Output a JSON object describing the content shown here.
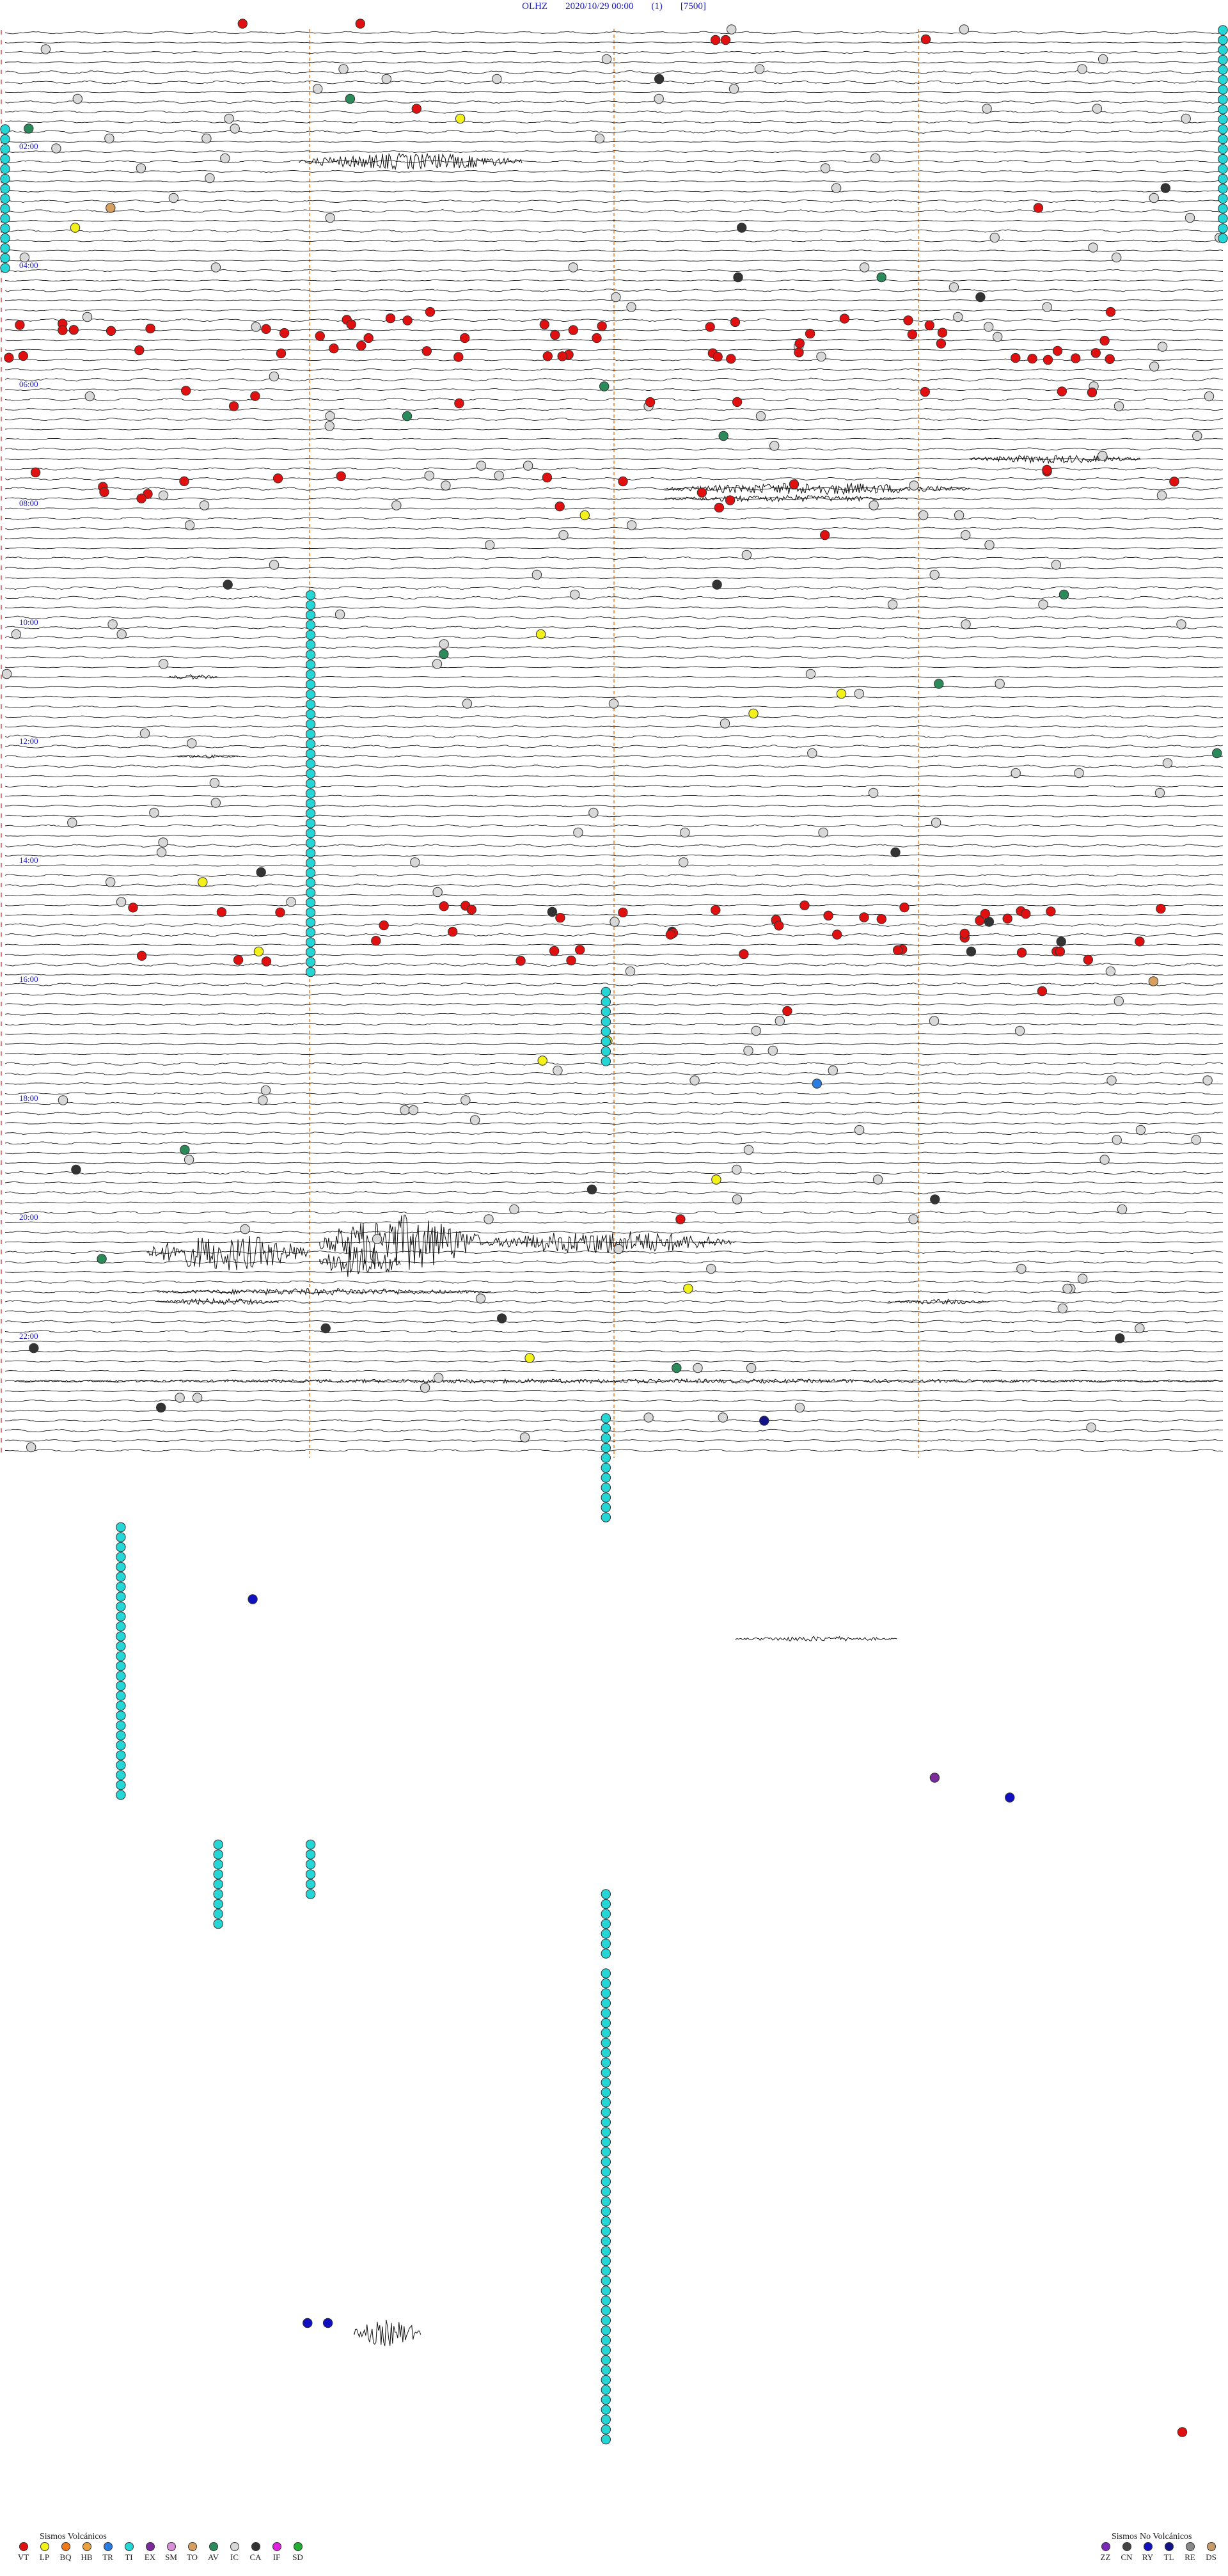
{
  "header": {
    "station": "OLHZ",
    "datetime": "2020/10/29 00:00",
    "count": "(1)",
    "scale": "[7500]"
  },
  "chart_data": {
    "type": "helicorder",
    "station": "OLHZ",
    "start": "2020/10/29 00:00",
    "hour_labels": [
      "02:00",
      "04:00",
      "06:00",
      "08:00",
      "10:00",
      "12:00",
      "14:00",
      "16:00",
      "18:00",
      "20:00",
      "22:00"
    ],
    "traces_per_hour": 6,
    "total_hours": 24,
    "minute_markers": [
      0,
      15,
      30,
      45,
      60
    ],
    "colors": {
      "VT": "#e01010",
      "LP": "#f2f21a",
      "BQ": "#f07a1a",
      "HB": "#e8a040",
      "TR": "#2a7de0",
      "TI": "#24d6d6",
      "EX": "#7a2a9a",
      "SM": "#d890d8",
      "TO": "#d8a060",
      "AV": "#2a8a5a",
      "IC": "#d8d8d8",
      "CA": "#333333",
      "IF": "#e020e0",
      "SD": "#20b030",
      "ZZ": "#7a2aba",
      "CN": "#444444",
      "RY": "#1010c0",
      "TL": "#111188",
      "RE": "#888888",
      "DS": "#c89a6a"
    },
    "series_segments": [
      {
        "code": "VT",
        "minutes": [
          12.5,
          18.2,
          24.6,
          31.0,
          39.5,
          44.1,
          52.7,
          57.3,
          3.4,
          7.9,
          26.8,
          48.2
        ]
      },
      {
        "code": "TI",
        "minutes": [
          60.0,
          29.5,
          44.5,
          14.7
        ]
      }
    ]
  },
  "legend_volcanic": {
    "title": "Sismos Volcánicos",
    "items": [
      {
        "code": "VT",
        "color": "#e01010"
      },
      {
        "code": "LP",
        "color": "#f2f21a"
      },
      {
        "code": "BQ",
        "color": "#f07a1a"
      },
      {
        "code": "HB",
        "color": "#e8a040"
      },
      {
        "code": "TR",
        "color": "#2a7de0"
      },
      {
        "code": "TI",
        "color": "#24d6d6"
      },
      {
        "code": "EX",
        "color": "#7a2a9a"
      },
      {
        "code": "SM",
        "color": "#d890d8"
      },
      {
        "code": "TO",
        "color": "#d8a060"
      },
      {
        "code": "AV",
        "color": "#2a8a5a"
      },
      {
        "code": "IC",
        "color": "#d8d8d8"
      },
      {
        "code": "CA",
        "color": "#333333"
      },
      {
        "code": "IF",
        "color": "#e020e0"
      },
      {
        "code": "SD",
        "color": "#20b030"
      }
    ]
  },
  "legend_non_volcanic": {
    "title": "Sismos No Volcánicos",
    "items": [
      {
        "code": "ZZ",
        "color": "#7a2aba"
      },
      {
        "code": "CN",
        "color": "#444444"
      },
      {
        "code": "RY",
        "color": "#1010c0"
      },
      {
        "code": "TL",
        "color": "#111188"
      },
      {
        "code": "RE",
        "color": "#888888"
      },
      {
        "code": "DS",
        "color": "#c89a6a"
      }
    ]
  }
}
